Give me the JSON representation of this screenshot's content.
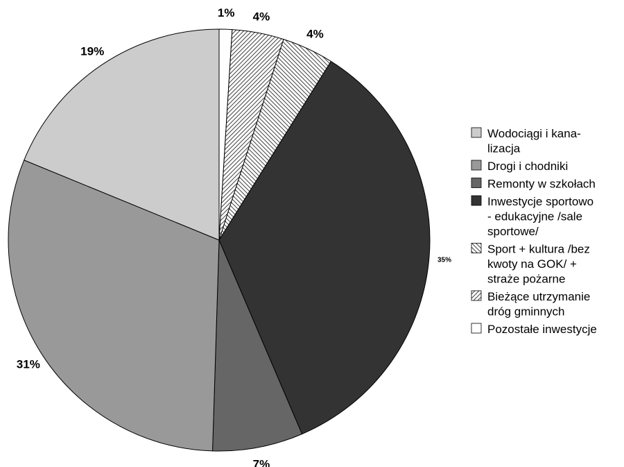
{
  "chart_data": {
    "type": "pie",
    "title": "",
    "start_angle_deg": 0,
    "direction": "clockwise",
    "slices": [
      {
        "label": "Pozostałe inwestycje",
        "value": 1,
        "value_label": "1%",
        "fill": "#ffffff",
        "pattern": "none"
      },
      {
        "label": "Bieżące utrzymanie dróg gminnych",
        "value": 4,
        "value_label": "4%",
        "fill": "#ffffff",
        "pattern": "diagonal-forward"
      },
      {
        "label": "Sport + kultura /bez kwoty na GOK/ + straże pożarne",
        "value": 4,
        "value_label": "4%",
        "fill": "#ffffff",
        "pattern": "diagonal-backward"
      },
      {
        "label": "Inwestycje sportowo - edukacyjne /sale sportowe/",
        "value": 35,
        "value_label": "35%",
        "fill": "#333333",
        "pattern": "none"
      },
      {
        "label": "Remonty w szkołach",
        "value": 7,
        "value_label": "7%",
        "fill": "#666666",
        "pattern": "none"
      },
      {
        "label": "Drogi i chodniki",
        "value": 31,
        "value_label": "31%",
        "fill": "#999999",
        "pattern": "none"
      },
      {
        "label": "Wodociągi i kanalizacja",
        "value": 19,
        "value_label": "19%",
        "fill": "#cccccc",
        "pattern": "none"
      }
    ],
    "legend": {
      "placement": "right",
      "items": [
        {
          "lines": [
            "Wodociągi i kana-",
            "lizacja"
          ],
          "fill": "#cccccc",
          "pattern": "none"
        },
        {
          "lines": [
            "Drogi i chodniki"
          ],
          "fill": "#999999",
          "pattern": "none"
        },
        {
          "lines": [
            "Remonty w szkołach"
          ],
          "fill": "#666666",
          "pattern": "none"
        },
        {
          "lines": [
            "Inwestycje sportowo",
            "- edukacyjne /sale",
            "sportowe/"
          ],
          "fill": "#333333",
          "pattern": "none"
        },
        {
          "lines": [
            "Sport + kultura /bez",
            "kwoty na GOK/ +",
            "straże pożarne"
          ],
          "fill": "#ffffff",
          "pattern": "diagonal-backward"
        },
        {
          "lines": [
            "Bieżące utrzymanie",
            "dróg gminnych"
          ],
          "fill": "#ffffff",
          "pattern": "diagonal-forward"
        },
        {
          "lines": [
            "Pozostałe inwestycje"
          ],
          "fill": "#ffffff",
          "pattern": "none"
        }
      ]
    }
  }
}
